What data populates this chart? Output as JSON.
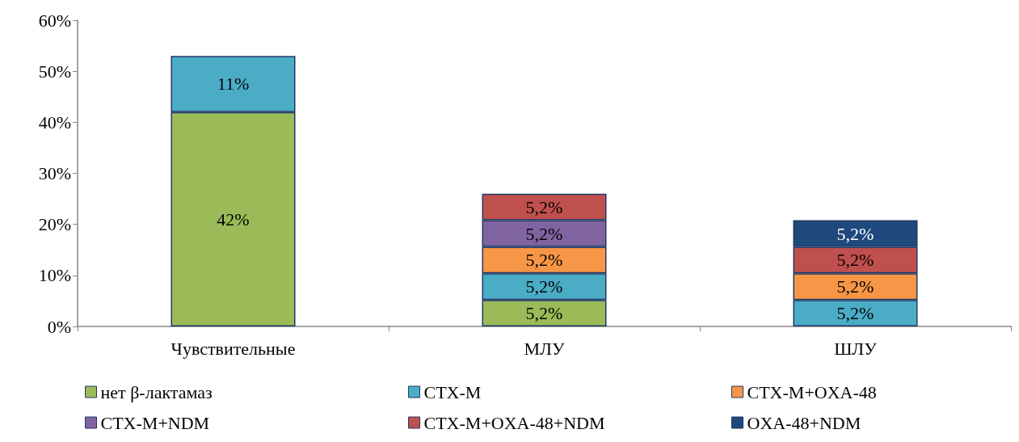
{
  "chart_data": {
    "type": "bar",
    "stacked": true,
    "categories": [
      "Чувствительные",
      "МЛУ",
      "ШЛУ"
    ],
    "series": [
      {
        "name": "нет β-лактамаз",
        "color": "#9bbb59",
        "values": [
          42,
          5.2,
          null
        ],
        "value_labels": [
          "42%",
          "5,2%",
          null
        ]
      },
      {
        "name": "CTX-M",
        "color": "#4bacc6",
        "values": [
          11,
          5.2,
          5.2
        ],
        "value_labels": [
          "11%",
          "5,2%",
          "5,2%"
        ]
      },
      {
        "name": "CTX-M+OXA-48",
        "color": "#f79646",
        "values": [
          null,
          5.2,
          5.2
        ],
        "value_labels": [
          null,
          "5,2%",
          "5,2%"
        ]
      },
      {
        "name": "CTX-M+NDM",
        "color": "#8064a2",
        "values": [
          null,
          5.2,
          null
        ],
        "value_labels": [
          null,
          "5,2%",
          null
        ]
      },
      {
        "name": "CTX-M+OXA-48+NDM",
        "color": "#c0504d",
        "values": [
          null,
          5.2,
          5.2
        ],
        "value_labels": [
          null,
          "5,2%",
          "5,2%"
        ]
      },
      {
        "name": "OXA-48+NDM",
        "color": "#1f497d",
        "values": [
          null,
          null,
          5.2
        ],
        "value_labels": [
          null,
          null,
          "5,2%"
        ]
      }
    ],
    "ylim": [
      0,
      60
    ],
    "yticks": [
      {
        "value": 0,
        "label": "0%"
      },
      {
        "value": 10,
        "label": "10%"
      },
      {
        "value": 20,
        "label": "20%"
      },
      {
        "value": 30,
        "label": "30%"
      },
      {
        "value": 40,
        "label": "40%"
      },
      {
        "value": 50,
        "label": "50%"
      },
      {
        "value": 60,
        "label": "60%"
      }
    ],
    "grid": false,
    "legend": "bottom"
  }
}
